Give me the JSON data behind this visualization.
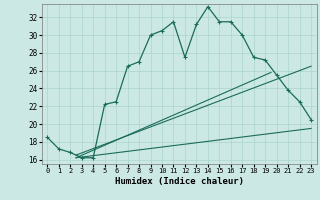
{
  "xlabel": "Humidex (Indice chaleur)",
  "bg_color": "#cce8e4",
  "grid_color": "#aad4cc",
  "line_color": "#1a6b5a",
  "xlim": [
    -0.5,
    23.5
  ],
  "ylim": [
    15.5,
    33.5
  ],
  "xticks": [
    0,
    1,
    2,
    3,
    4,
    5,
    6,
    7,
    8,
    9,
    10,
    11,
    12,
    13,
    14,
    15,
    16,
    17,
    18,
    19,
    20,
    21,
    22,
    23
  ],
  "yticks": [
    16,
    18,
    20,
    22,
    24,
    26,
    28,
    30,
    32
  ],
  "main_x": [
    0,
    1,
    2,
    3,
    4,
    5,
    6,
    7,
    8,
    9,
    10,
    11,
    12,
    13,
    14,
    15,
    16,
    17,
    18,
    19,
    20,
    21,
    22,
    23
  ],
  "main_y": [
    18.5,
    17.2,
    16.8,
    16.2,
    16.2,
    22.2,
    22.5,
    26.5,
    27.0,
    30.0,
    30.5,
    31.5,
    27.5,
    31.2,
    33.2,
    31.5,
    31.5,
    30.0,
    27.5,
    27.2,
    25.5,
    23.8,
    22.5,
    20.5
  ],
  "line2_x": [
    2.5,
    19.5
  ],
  "line2_y": [
    16.2,
    25.8
  ],
  "line3_x": [
    2.5,
    23.0
  ],
  "line3_y": [
    16.2,
    19.5
  ],
  "line4_x": [
    2.5,
    23.0
  ],
  "line4_y": [
    16.5,
    26.5
  ]
}
